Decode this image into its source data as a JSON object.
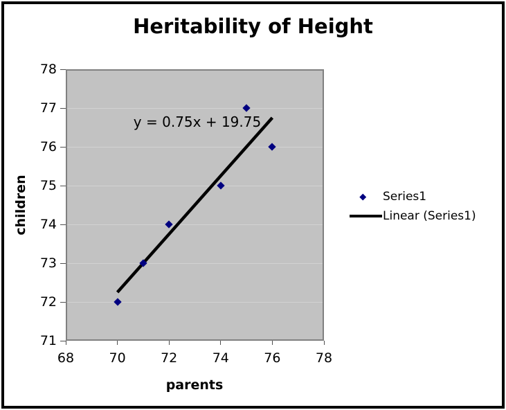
{
  "chart_data": {
    "type": "scatter",
    "title": "Heritability of Height",
    "xlabel": "parents",
    "ylabel": "children",
    "xlim": [
      68,
      78
    ],
    "ylim": [
      71,
      78
    ],
    "xticks": [
      68,
      70,
      72,
      74,
      76,
      78
    ],
    "yticks": [
      71,
      72,
      73,
      74,
      75,
      76,
      77,
      78
    ],
    "grid": "horizontal-only",
    "legend_position": "right",
    "series": [
      {
        "name": "Series1",
        "marker": "diamond",
        "color": "#000080",
        "points": [
          [
            70,
            72
          ],
          [
            71,
            73
          ],
          [
            72,
            74
          ],
          [
            74,
            75
          ],
          [
            75,
            77
          ],
          [
            76,
            76
          ]
        ]
      }
    ],
    "trendline": {
      "name": "Linear (Series1)",
      "equation": "y = 0.75x + 19.75",
      "slope": 0.75,
      "intercept": 19.75,
      "x_start": 70,
      "x_end": 76,
      "color": "#000000",
      "width": 4.5
    },
    "style": {
      "plot_bg": "#c2c2c2",
      "plot_border": "#808080",
      "gridline": "#d2d2d2",
      "tick": "#4d4d4d",
      "marker": "#000080",
      "trend": "#000000",
      "frame_border": "#000000",
      "background": "#ffffff"
    }
  }
}
